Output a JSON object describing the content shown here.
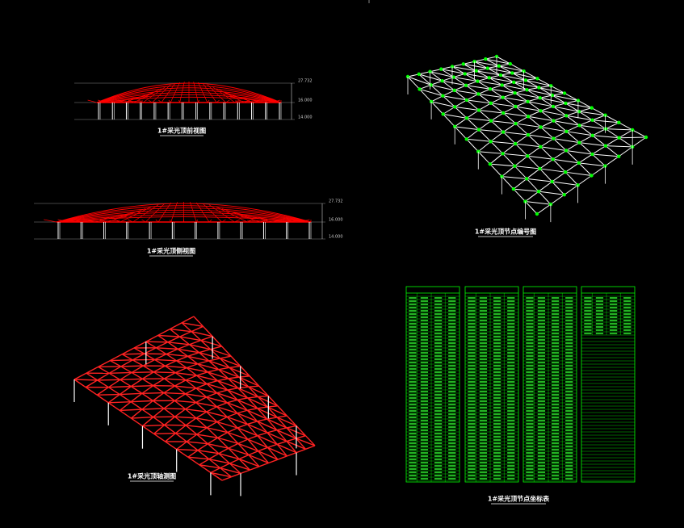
{
  "front_view": {
    "caption": "1#采光顶前视图",
    "elevations": [
      "27.732",
      "16.000",
      "14.000"
    ]
  },
  "side_view": {
    "caption": "1#采光顶侧视图",
    "elevations": [
      "27.732",
      "16.000",
      "14.000"
    ]
  },
  "node_view": {
    "caption": "1#采光顶节点编号图"
  },
  "axon_view": {
    "caption": "1#采光顶轴测图"
  },
  "node_table": {
    "caption": "1#采光顶节点坐标表"
  }
}
